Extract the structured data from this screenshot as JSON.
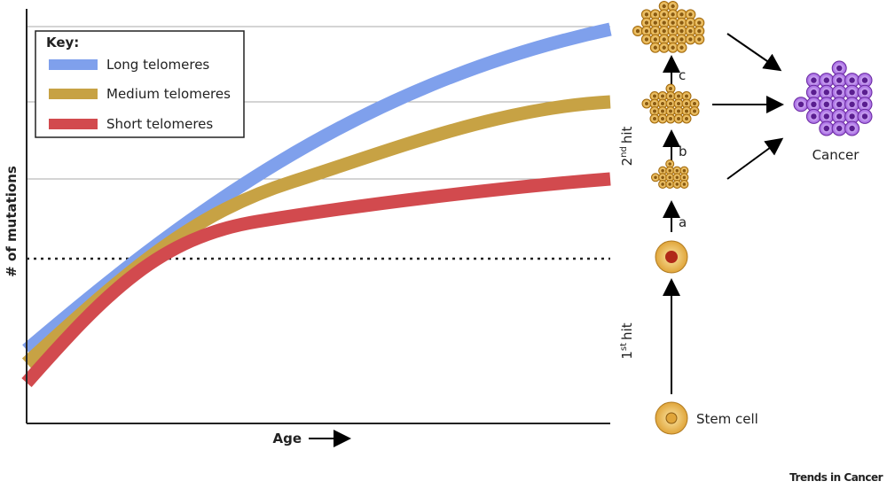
{
  "key": {
    "title": "Key:",
    "items": [
      "Long telomeres",
      "Medium telomeres",
      "Short telomeres"
    ]
  },
  "axes": {
    "y_label": "# of mutations",
    "x_label": "Age"
  },
  "pathway": {
    "second_hit": {
      "number": "2",
      "suffix": "nd",
      "word": "hit"
    },
    "first_hit": {
      "number": "1",
      "suffix": "st",
      "word": "hit"
    },
    "steps": [
      "a",
      "b",
      "c"
    ],
    "stem_cell": "Stem cell",
    "cancer": "Cancer"
  },
  "footer": "Trends in Cancer"
}
